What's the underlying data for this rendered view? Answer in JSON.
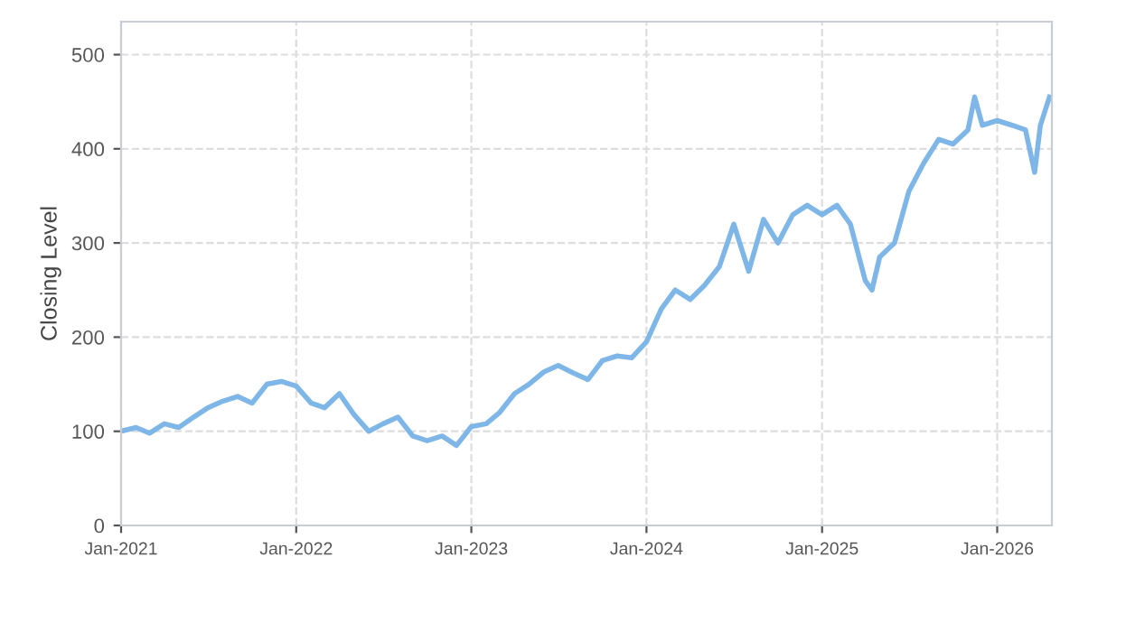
{
  "chart_data": {
    "type": "line",
    "ylabel": "Closing Level",
    "grid": true,
    "legend": false,
    "marker": "none",
    "line_style": "solid",
    "xlim": [
      "2021-01-01",
      "2026-04-25"
    ],
    "ylim": [
      0,
      535
    ],
    "xticks": [
      {
        "value": "2021-01-01",
        "label": "Jan-2021"
      },
      {
        "value": "2022-01-01",
        "label": "Jan-2022"
      },
      {
        "value": "2023-01-01",
        "label": "Jan-2023"
      },
      {
        "value": "2024-01-01",
        "label": "Jan-2024"
      },
      {
        "value": "2025-01-01",
        "label": "Jan-2025"
      },
      {
        "value": "2026-01-01",
        "label": "Jan-2026"
      }
    ],
    "yticks": [
      0,
      100,
      200,
      300,
      400,
      500
    ],
    "x": [
      "2021-01-01",
      "2021-02-01",
      "2021-03-01",
      "2021-04-01",
      "2021-05-01",
      "2021-06-01",
      "2021-07-01",
      "2021-08-01",
      "2021-09-01",
      "2021-10-01",
      "2021-11-01",
      "2021-12-01",
      "2022-01-01",
      "2022-02-01",
      "2022-03-01",
      "2022-04-01",
      "2022-05-01",
      "2022-06-01",
      "2022-07-01",
      "2022-08-01",
      "2022-09-01",
      "2022-10-01",
      "2022-11-01",
      "2022-12-01",
      "2023-01-01",
      "2023-02-01",
      "2023-03-01",
      "2023-04-01",
      "2023-05-01",
      "2023-06-01",
      "2023-07-01",
      "2023-08-01",
      "2023-09-01",
      "2023-10-01",
      "2023-11-01",
      "2023-12-01",
      "2024-01-01",
      "2024-02-01",
      "2024-03-01",
      "2024-04-01",
      "2024-05-01",
      "2024-06-01",
      "2024-07-01",
      "2024-08-01",
      "2024-09-01",
      "2024-10-01",
      "2024-11-01",
      "2024-12-01",
      "2025-01-01",
      "2025-02-01",
      "2025-03-01",
      "2025-04-01",
      "2025-04-15",
      "2025-05-01",
      "2025-06-01",
      "2025-07-01",
      "2025-08-01",
      "2025-09-01",
      "2025-10-01",
      "2025-11-01",
      "2025-11-15",
      "2025-12-01",
      "2026-01-01",
      "2026-02-01",
      "2026-03-01",
      "2026-03-20",
      "2026-04-01",
      "2026-04-20"
    ],
    "series": [
      {
        "color": "#7eb6e8",
        "values": [
          100,
          104,
          98,
          108,
          104,
          115,
          125,
          132,
          137,
          130,
          150,
          153,
          148,
          130,
          125,
          140,
          118,
          100,
          108,
          115,
          95,
          90,
          95,
          85,
          105,
          108,
          120,
          140,
          150,
          163,
          170,
          162,
          155,
          175,
          180,
          178,
          195,
          230,
          250,
          240,
          255,
          275,
          320,
          270,
          325,
          300,
          330,
          340,
          330,
          340,
          320,
          260,
          250,
          285,
          300,
          355,
          385,
          410,
          405,
          420,
          455,
          425,
          430,
          425,
          420,
          375,
          425,
          455
        ]
      }
    ]
  }
}
